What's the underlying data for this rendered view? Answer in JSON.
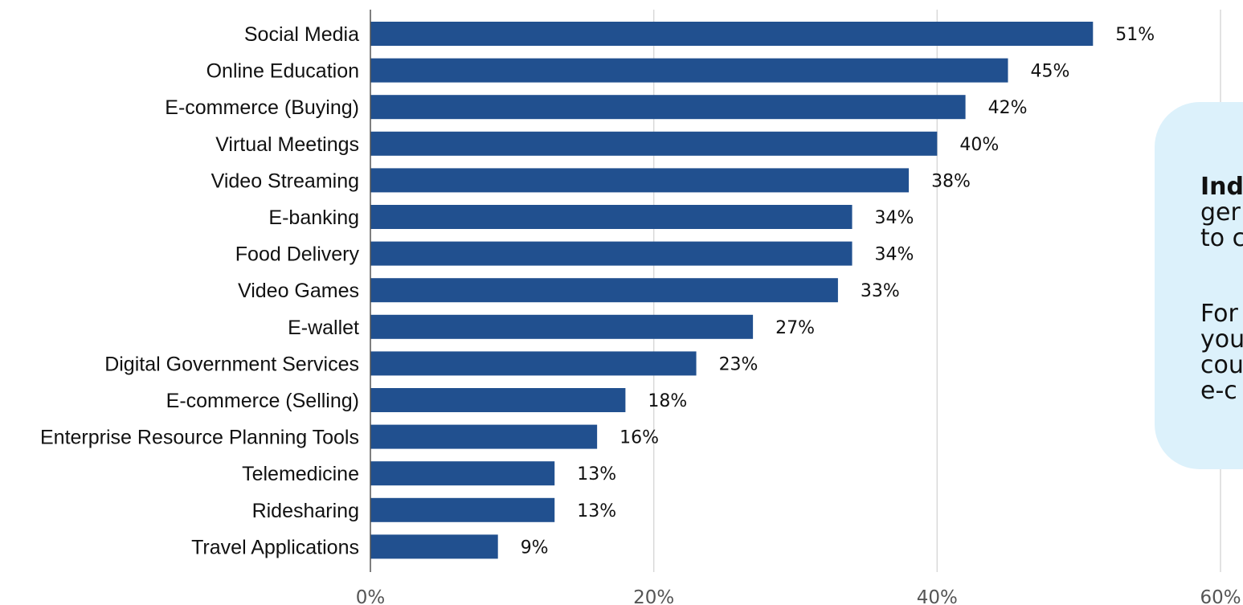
{
  "chart_data": {
    "type": "bar",
    "orientation": "horizontal",
    "categories": [
      "Social Media",
      "Online Education",
      "E-commerce (Buying)",
      "Virtual Meetings",
      "Video Streaming",
      "E-banking",
      "Food Delivery",
      "Video Games",
      "E-wallet",
      "Digital Government Services",
      "E-commerce (Selling)",
      "Enterprise Resource Planning Tools",
      "Telemedicine",
      "Ridesharing",
      "Travel Applications"
    ],
    "values": [
      51,
      45,
      42,
      40,
      38,
      34,
      34,
      33,
      27,
      23,
      18,
      16,
      13,
      13,
      9
    ],
    "value_labels": [
      "51%",
      "45%",
      "42%",
      "40%",
      "38%",
      "34%",
      "34%",
      "33%",
      "27%",
      "23%",
      "18%",
      "16%",
      "13%",
      "13%",
      "9%"
    ],
    "xlim": [
      0,
      60
    ],
    "xticks": [
      0,
      20,
      40,
      60
    ],
    "xtick_labels": [
      "0%",
      "20%",
      "40%",
      "60%"
    ],
    "grid": "vertical",
    "bar_color": "#21508f",
    "gridline_color": "#d9d9d9",
    "title": "",
    "xlabel": "",
    "ylabel": ""
  },
  "callout": {
    "paragraph_1_bold": "Ind",
    "paragraph_1_lines": [
      "ger",
      "to c"
    ],
    "paragraph_2_lines": [
      "For",
      "you",
      "cou",
      "e-c"
    ],
    "background_color": "#dcf1fb"
  }
}
